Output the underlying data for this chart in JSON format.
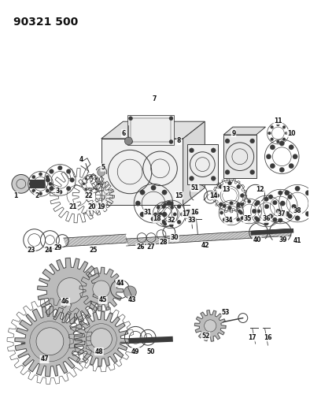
{
  "title": "90321 500",
  "background_color": "#ffffff",
  "figsize": [
    3.94,
    5.33
  ],
  "dpi": 100,
  "line_color": "#3a3a3a",
  "title_fontsize": 10,
  "label_fontsize": 5.5
}
